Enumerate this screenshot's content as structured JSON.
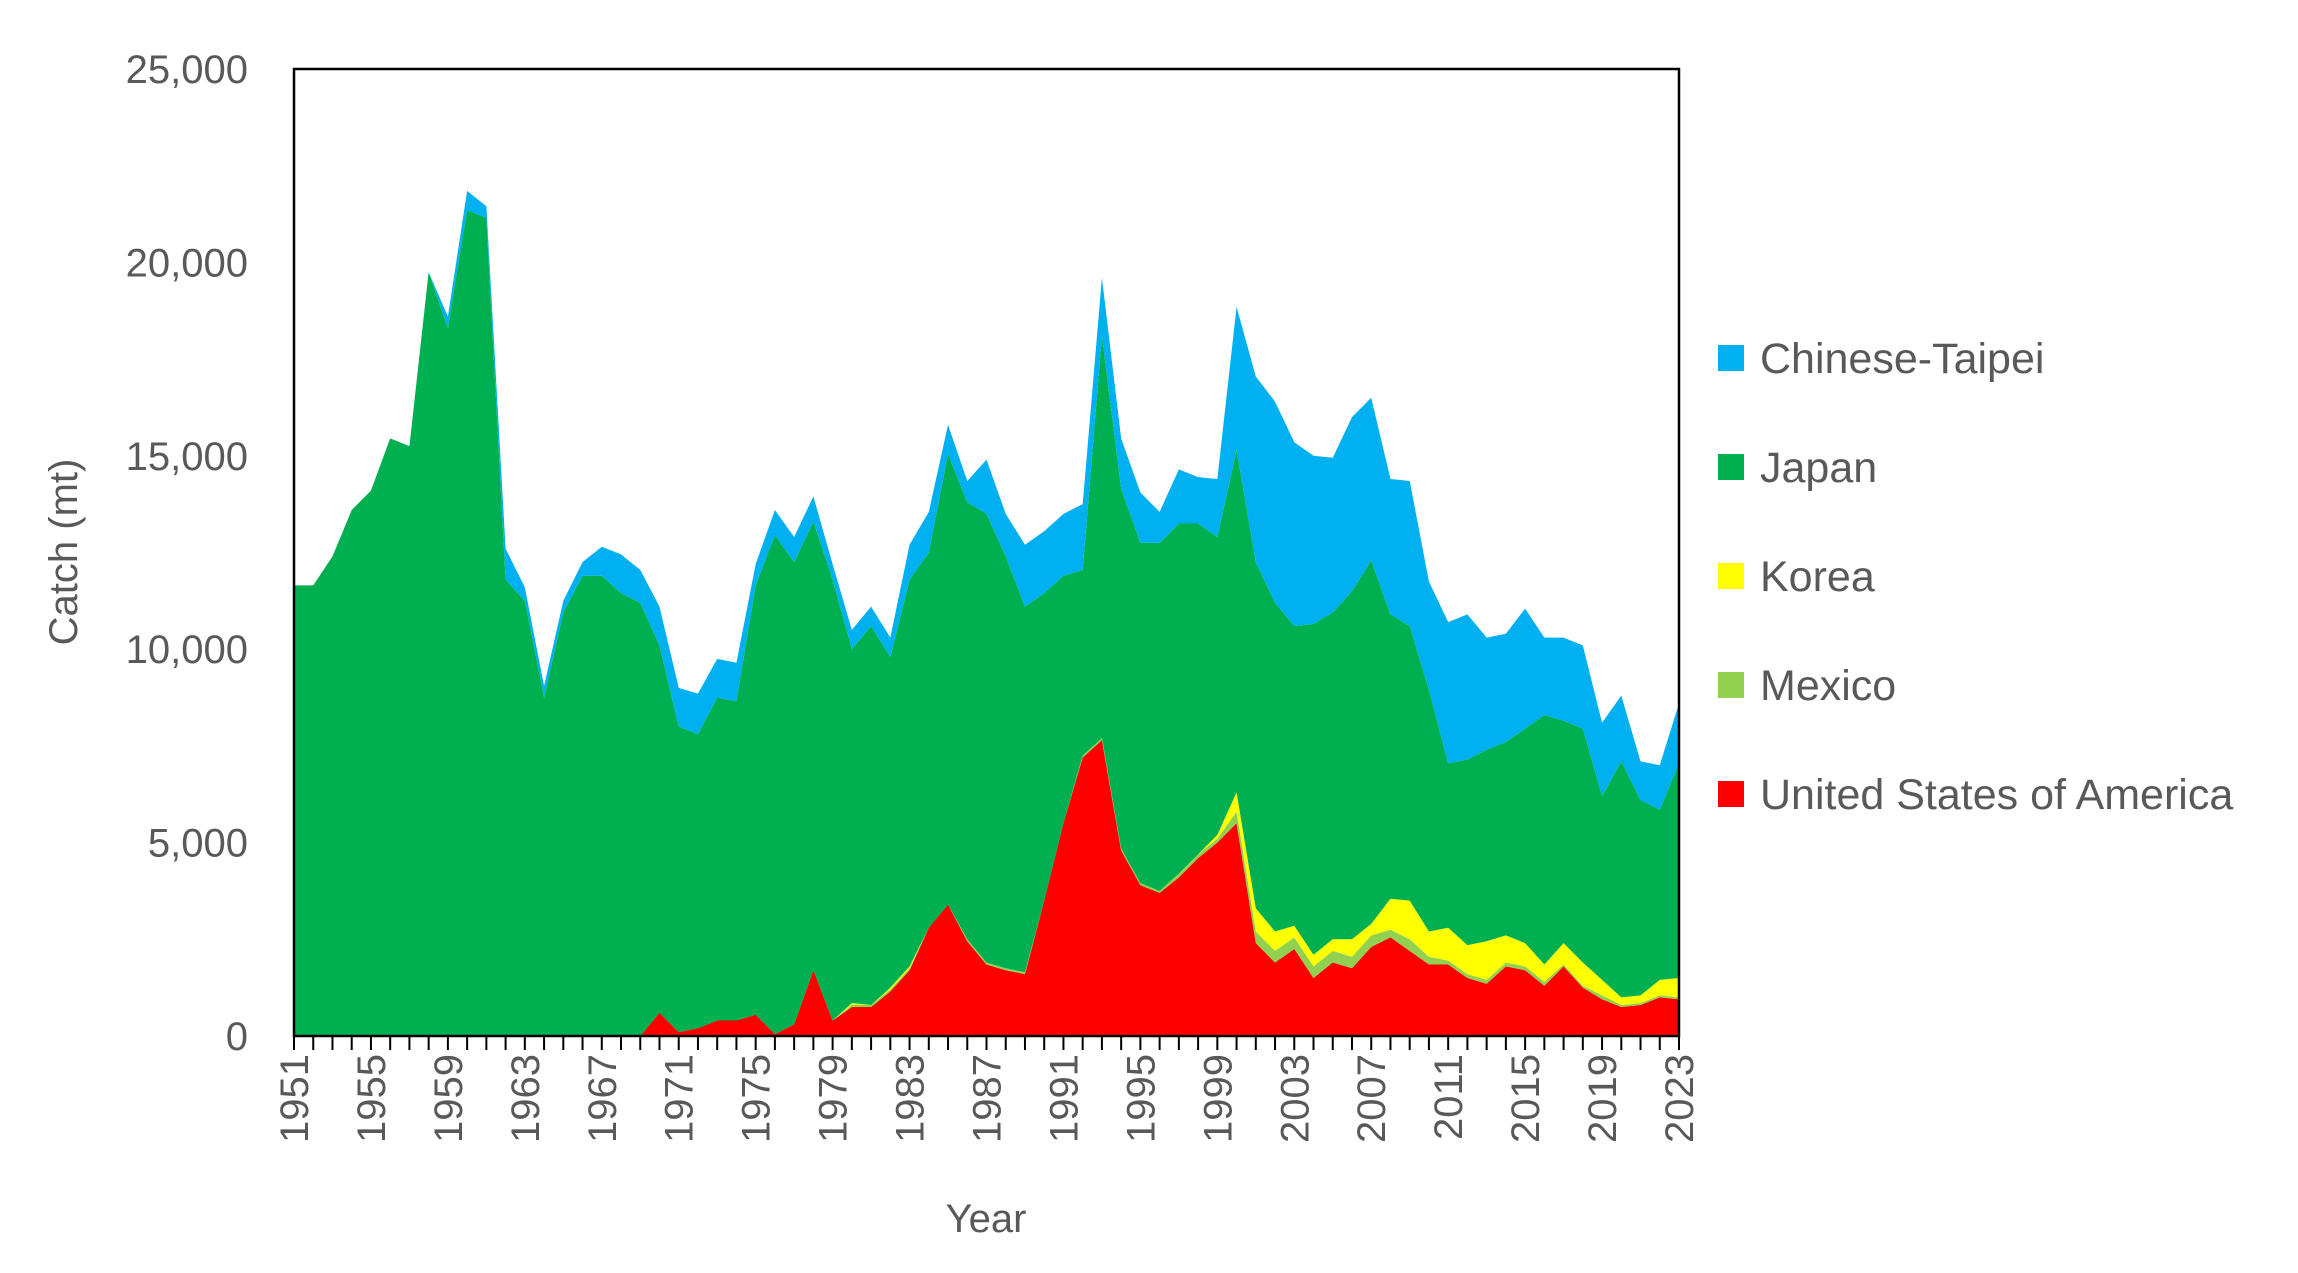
{
  "chart_data": {
    "type": "area",
    "stacked": true,
    "title": "",
    "xlabel": "Year",
    "ylabel": "Catch (mt)",
    "ylim": [
      0,
      25000
    ],
    "xlim": [
      1951,
      2023
    ],
    "y_ticks": [
      "0",
      "5,000",
      "10,000",
      "15,000",
      "20,000",
      "25,000"
    ],
    "x_ticks": [
      "1951",
      "1955",
      "1959",
      "1963",
      "1967",
      "1971",
      "1975",
      "1979",
      "1983",
      "1987",
      "1991",
      "1995",
      "1999",
      "2003",
      "2007",
      "2011",
      "2015",
      "2019",
      "2023"
    ],
    "grid": false,
    "legend_position": "right",
    "x": [
      1951,
      1952,
      1953,
      1954,
      1955,
      1956,
      1957,
      1958,
      1959,
      1960,
      1961,
      1962,
      1963,
      1964,
      1965,
      1966,
      1967,
      1968,
      1969,
      1970,
      1971,
      1972,
      1973,
      1974,
      1975,
      1976,
      1977,
      1978,
      1979,
      1980,
      1981,
      1982,
      1983,
      1984,
      1985,
      1986,
      1987,
      1988,
      1989,
      1990,
      1991,
      1992,
      1993,
      1994,
      1995,
      1996,
      1997,
      1998,
      1999,
      2000,
      2001,
      2002,
      2003,
      2004,
      2005,
      2006,
      2007,
      2008,
      2009,
      2010,
      2011,
      2012,
      2013,
      2014,
      2015,
      2016,
      2017,
      2018,
      2019,
      2020,
      2021,
      2022,
      2023
    ],
    "series": [
      {
        "name": "United States of America",
        "color": "#FF0000",
        "values": [
          0,
          0,
          0,
          0,
          0,
          0,
          0,
          0,
          0,
          0,
          0,
          0,
          0,
          0,
          0,
          0,
          0,
          0,
          0,
          600,
          100,
          200,
          400,
          400,
          550,
          50,
          300,
          1700,
          400,
          750,
          750,
          1150,
          1700,
          2800,
          3400,
          2450,
          1850,
          1700,
          1600,
          3500,
          5500,
          7200,
          7650,
          4800,
          3900,
          3700,
          4100,
          4600,
          5000,
          5500,
          2400,
          1900,
          2250,
          1500,
          1900,
          1750,
          2300,
          2550,
          2200,
          1850,
          1850,
          1500,
          1350,
          1800,
          1700,
          1300,
          1800,
          1250,
          950,
          750,
          800,
          1000,
          950
        ]
      },
      {
        "name": "Mexico",
        "color": "#92D050",
        "values": [
          0,
          0,
          0,
          0,
          0,
          0,
          0,
          0,
          0,
          0,
          0,
          0,
          0,
          0,
          0,
          0,
          0,
          0,
          0,
          0,
          0,
          0,
          0,
          0,
          0,
          0,
          0,
          0,
          0,
          50,
          50,
          50,
          50,
          0,
          0,
          50,
          50,
          50,
          50,
          0,
          0,
          50,
          50,
          50,
          50,
          50,
          100,
          100,
          100,
          300,
          300,
          300,
          300,
          300,
          300,
          300,
          300,
          200,
          300,
          200,
          100,
          100,
          100,
          100,
          100,
          100,
          50,
          50,
          100,
          50,
          50,
          50,
          50
        ]
      },
      {
        "name": "Korea",
        "color": "#FFFF00",
        "values": [
          0,
          0,
          0,
          0,
          0,
          0,
          0,
          0,
          0,
          0,
          0,
          0,
          0,
          0,
          0,
          0,
          0,
          0,
          0,
          0,
          0,
          0,
          0,
          0,
          0,
          0,
          0,
          0,
          0,
          50,
          0,
          50,
          50,
          0,
          0,
          0,
          0,
          0,
          0,
          0,
          0,
          0,
          0,
          0,
          0,
          0,
          0,
          0,
          100,
          500,
          600,
          500,
          300,
          300,
          300,
          450,
          300,
          800,
          1000,
          650,
          850,
          750,
          1000,
          700,
          600,
          450,
          550,
          600,
          400,
          200,
          200,
          400,
          500
        ]
      },
      {
        "name": "Japan",
        "color": "#00B050",
        "values": [
          11650,
          11650,
          12400,
          13600,
          14100,
          15450,
          15250,
          19750,
          18300,
          21350,
          21150,
          11800,
          11250,
          8750,
          10950,
          11900,
          11900,
          11450,
          11200,
          9500,
          7900,
          7600,
          8350,
          8250,
          11100,
          12900,
          11950,
          11600,
          11400,
          9150,
          9800,
          8550,
          10000,
          9700,
          11650,
          11300,
          11600,
          10650,
          9450,
          7950,
          6400,
          4800,
          10400,
          9300,
          8800,
          9000,
          9050,
          8550,
          7700,
          8850,
          8950,
          8500,
          7750,
          8550,
          8450,
          9000,
          9400,
          7350,
          7100,
          6250,
          4250,
          4800,
          4950,
          5000,
          5550,
          6450,
          5750,
          6050,
          4750,
          6100,
          5050,
          4400,
          5550
        ]
      },
      {
        "name": "Chinese-Taipei",
        "color": "#00B0F0",
        "values": [
          0,
          0,
          0,
          0,
          0,
          0,
          0,
          0,
          300,
          500,
          300,
          800,
          350,
          300,
          300,
          350,
          750,
          1000,
          850,
          1000,
          1000,
          1050,
          1000,
          1000,
          550,
          650,
          650,
          650,
          400,
          500,
          500,
          500,
          900,
          1050,
          750,
          550,
          1400,
          1100,
          1600,
          1600,
          1600,
          1700,
          1500,
          1300,
          1300,
          800,
          1400,
          1200,
          1500,
          3700,
          4800,
          5200,
          4750,
          4350,
          4000,
          4500,
          4200,
          3500,
          3750,
          2800,
          3650,
          3750,
          2900,
          2800,
          3100,
          2000,
          2150,
          2150,
          1900,
          1700,
          1000,
          1150,
          1550
        ]
      }
    ]
  }
}
